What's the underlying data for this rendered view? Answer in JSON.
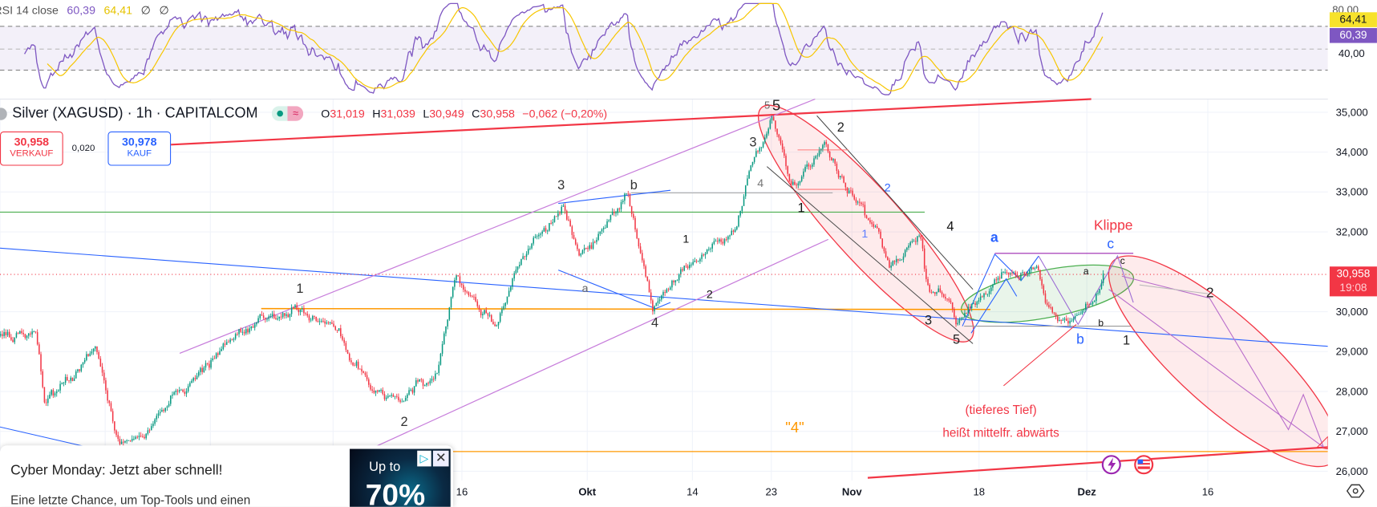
{
  "rsi": {
    "label": "RSI 14 close",
    "value": "60,39",
    "ma_value": "64,41",
    "na1": "∅",
    "na2": "∅",
    "axis_labels": [
      "80,00",
      "40,00"
    ],
    "line_color": "#7e57c2",
    "ma_color": "#f7c600"
  },
  "header": {
    "symbol_title": "Silver (XAGUSD) · 1h · CAPITALCOM",
    "market_status_icon": "market-open-dot",
    "pill_symbol": "≈",
    "ohlc": {
      "o_label": "O",
      "o": "31,019",
      "h_label": "H",
      "h": "31,039",
      "l_label": "L",
      "l": "30,949",
      "c_label": "C",
      "c": "30,958",
      "change": "−0,062 (−0,20%)"
    }
  },
  "trade": {
    "sell_price": "30,958",
    "sell_label": "VERKAUF",
    "spread": "0,020",
    "buy_price": "30,978",
    "buy_label": "KAUF"
  },
  "price_axis": {
    "ticks": [
      "35,000",
      "34,000",
      "33,000",
      "32,000",
      "30,000",
      "29,000",
      "28,000",
      "27,000",
      "26,000"
    ],
    "current_price": "30,958",
    "countdown": "19:08",
    "colors": {
      "up": "#089981",
      "down": "#f23645",
      "current": "#f23645"
    }
  },
  "time_axis": {
    "ticks": [
      "16",
      "Okt",
      "14",
      "23",
      "Nov",
      "18",
      "Dez",
      "16"
    ]
  },
  "annotations": {
    "w3a": "3",
    "wb1": "b",
    "w1a": "1",
    "w2a": "2",
    "w4a": "4",
    "wa1": "a",
    "w1b": "1",
    "w2b": "2",
    "w5s": "5",
    "w5": "5",
    "w3b": "3",
    "w4b": "4",
    "w1c": "1",
    "w2c": "2",
    "w2blue": "2",
    "w1blue": "1",
    "w4c": "4",
    "w3c": "3",
    "w5b": "5",
    "wa_blue": "a",
    "wb_blue": "b",
    "wc_blue": "c",
    "klippe": "Klippe",
    "wa_small": "a",
    "wc_small": "c",
    "wb_small": "b",
    "w1d": "1",
    "w2d": "2",
    "four_quoted": "\"4\"",
    "note_line1": "(tieferes Tief)",
    "note_line2": "heißt mittelfr. abwärts"
  },
  "event_icons": [
    "lightning-icon",
    "us-flag-icon"
  ],
  "ad": {
    "title": "Cyber Monday: Jetzt aber schnell!",
    "body": "Eine letzte Chance, um Top-Tools und einen",
    "image_text1": "Up to",
    "image_text2": "70%",
    "close": "✕",
    "adchoices": "▷"
  },
  "chart_data": {
    "type": "candlestick",
    "title": "Silver (XAGUSD) · 1h · CAPITALCOM",
    "ylim": [
      26000,
      35000
    ],
    "price_path": [
      [
        "07-23",
        29.4
      ],
      [
        "07-27",
        29.35
      ],
      [
        "07-28",
        27.7
      ],
      [
        "08-03",
        29.0
      ],
      [
        "08-06",
        26.7
      ],
      [
        "08-09",
        27.0
      ],
      [
        "08-19",
        29.2
      ],
      [
        "08-22",
        29.7
      ],
      [
        "08-27",
        30.1
      ],
      [
        "09-01",
        29.6
      ],
      [
        "09-05",
        28.0
      ],
      [
        "09-08",
        27.7
      ],
      [
        "09-13",
        28.6
      ],
      [
        "09-15",
        30.9
      ],
      [
        "09-20",
        29.8
      ],
      [
        "09-23",
        31.2
      ],
      [
        "09-28",
        32.65
      ],
      [
        "09-30",
        31.4
      ],
      [
        "10-06",
        32.9
      ],
      [
        "10-09",
        30.1
      ],
      [
        "10-14",
        31.3
      ],
      [
        "10-19",
        32.1
      ],
      [
        "10-21",
        34.0
      ],
      [
        "10-23",
        34.85
      ],
      [
        "10-25",
        33.1
      ],
      [
        "10-29",
        34.2
      ],
      [
        "10-31",
        33.2
      ],
      [
        "11-03",
        32.3
      ],
      [
        "11-06",
        31.1
      ],
      [
        "11-10",
        32.0
      ],
      [
        "11-11",
        30.6
      ],
      [
        "11-14",
        30.3
      ],
      [
        "11-15",
        29.7
      ],
      [
        "11-20",
        30.9
      ],
      [
        "11-25",
        30.9
      ],
      [
        "11-26",
        30.1
      ],
      [
        "11-29",
        29.8
      ],
      [
        "12-02",
        30.3
      ],
      [
        "12-03",
        30.958
      ]
    ],
    "rsi_range": [
      0,
      100
    ],
    "rsi_levels": [
      70,
      50,
      30
    ]
  }
}
